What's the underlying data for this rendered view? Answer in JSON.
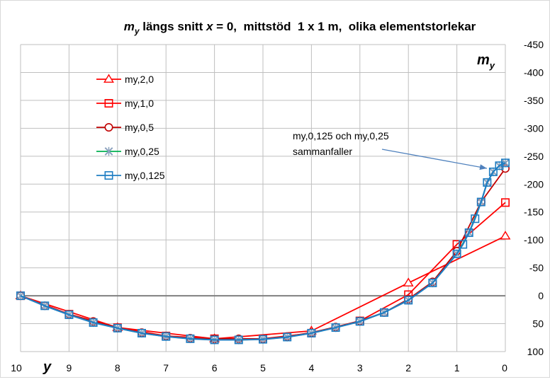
{
  "chart_data": {
    "type": "line",
    "title": {
      "prefix": "m",
      "prefix_sub": "y",
      "part1": " längs snitt ",
      "xvar": "x",
      "part2": " = 0,  mittstöd  1 x 1 m,  olika elementstorlekar"
    },
    "xlabel": "y",
    "ylabel": {
      "main": "m",
      "sub": "y"
    },
    "xlim": [
      10,
      0
    ],
    "ylim": [
      100,
      -450
    ],
    "x_reversed": true,
    "y_reversed": true,
    "grid": true,
    "legend_position": "top-left",
    "x_ticks": [
      10,
      9,
      8,
      7,
      6,
      5,
      4,
      3,
      2,
      1,
      0
    ],
    "y_ticks": [
      -450,
      -400,
      -350,
      -300,
      -250,
      -200,
      -150,
      -100,
      -50,
      0,
      50,
      100
    ],
    "annotation": {
      "lines": [
        "my,0,125 och my,0,25",
        "sammanfaller"
      ]
    },
    "series": [
      {
        "name": "my,2,0",
        "color": "#ff0000",
        "marker": "triangle",
        "x": [
          10,
          8,
          6,
          4,
          2,
          0
        ],
        "y": [
          0,
          57,
          77,
          63,
          -23,
          -107
        ]
      },
      {
        "name": "my,1,0",
        "color": "#ff0000",
        "marker": "square",
        "x": [
          10,
          9,
          8,
          7,
          6,
          5,
          4,
          3,
          2,
          1,
          0
        ],
        "y": [
          0,
          33,
          57,
          72,
          77,
          77,
          67,
          45,
          -2,
          -92,
          -167
        ]
      },
      {
        "name": "my,0,5",
        "color": "#c00000",
        "marker": "circle",
        "x": [
          10,
          9.5,
          9,
          8.5,
          8,
          7.5,
          7,
          6.5,
          6,
          5.5,
          5,
          4.5,
          4,
          3.5,
          3,
          2.5,
          2,
          1.5,
          1,
          0.5,
          0
        ],
        "y": [
          0,
          18,
          33,
          46,
          57,
          66,
          72,
          76,
          77,
          77,
          77,
          73,
          66,
          56,
          45,
          30,
          6,
          -25,
          -80,
          -168,
          -228
        ]
      },
      {
        "name": "my,0,25",
        "color": "#00b050",
        "marker": "x",
        "x": [
          10,
          9.5,
          9,
          8.5,
          8,
          7.5,
          7,
          6.5,
          6,
          5.5,
          5,
          4.5,
          4,
          3.5,
          3,
          2.5,
          2,
          1.5,
          1,
          0.75,
          0.5,
          0.375,
          0.25,
          0.125,
          0
        ],
        "y": [
          0,
          18,
          34,
          48,
          58,
          67,
          73,
          77,
          79,
          79,
          78,
          74,
          67,
          57,
          46,
          30,
          8,
          -23,
          -75,
          -113,
          -168,
          -203,
          -222,
          -233,
          -238
        ]
      },
      {
        "name": "my,0,125",
        "color": "#1f7ec3",
        "marker": "square",
        "x": [
          10,
          9.5,
          9,
          8.5,
          8,
          7.5,
          7,
          6.5,
          6,
          5.5,
          5,
          4.5,
          4,
          3.5,
          3,
          2.5,
          2,
          1.5,
          1,
          0.875,
          0.75,
          0.625,
          0.5,
          0.375,
          0.25,
          0.125,
          0
        ],
        "y": [
          0,
          18,
          34,
          48,
          58,
          67,
          73,
          77,
          79,
          79,
          78,
          74,
          67,
          57,
          46,
          30,
          8,
          -23,
          -75,
          -92,
          -113,
          -138,
          -168,
          -203,
          -222,
          -233,
          -238
        ]
      }
    ]
  }
}
